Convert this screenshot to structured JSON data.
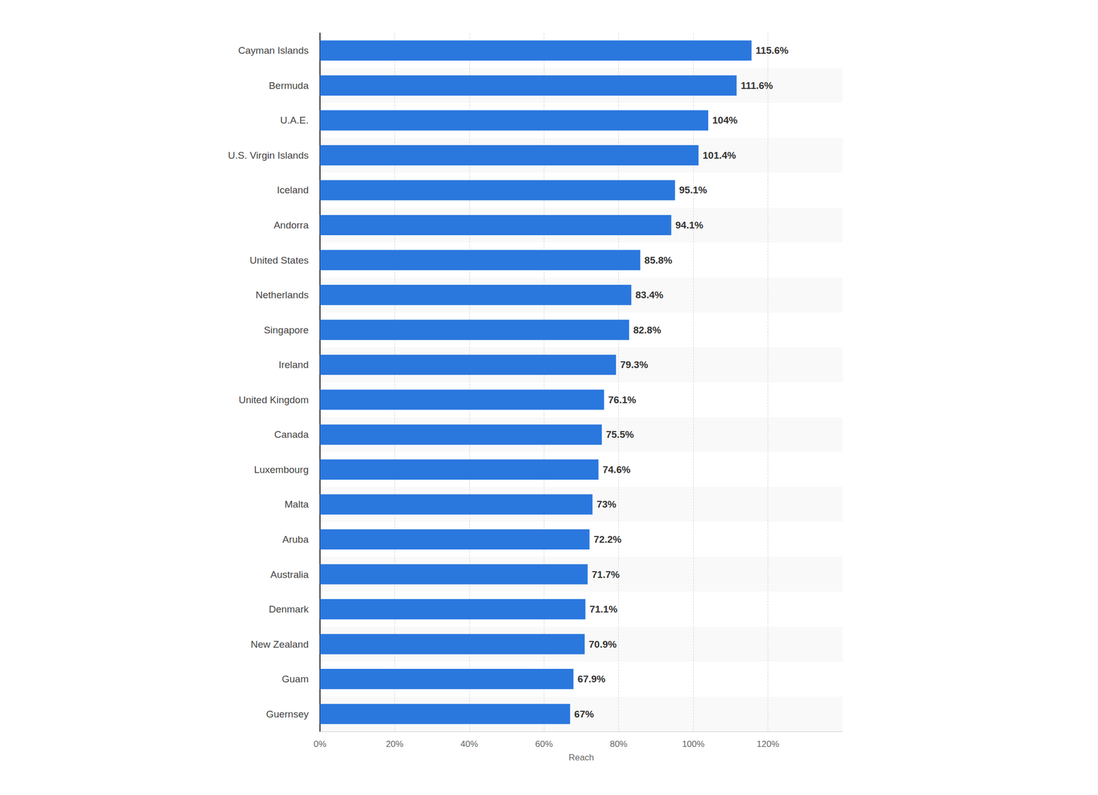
{
  "chart_data": {
    "type": "bar",
    "orientation": "horizontal",
    "categories": [
      "Cayman Islands",
      "Bermuda",
      "U.A.E.",
      "U.S. Virgin Islands",
      "Iceland",
      "Andorra",
      "United States",
      "Netherlands",
      "Singapore",
      "Ireland",
      "United Kingdom",
      "Canada",
      "Luxembourg",
      "Malta",
      "Aruba",
      "Australia",
      "Denmark",
      "New Zealand",
      "Guam",
      "Guernsey"
    ],
    "values": [
      115.6,
      111.6,
      104,
      101.4,
      95.1,
      94.1,
      85.8,
      83.4,
      82.8,
      79.3,
      76.1,
      75.5,
      74.6,
      73,
      72.2,
      71.7,
      71.1,
      70.9,
      67.9,
      67
    ],
    "value_labels": [
      "115.6%",
      "111.6%",
      "104%",
      "101.4%",
      "95.1%",
      "94.1%",
      "85.8%",
      "83.4%",
      "82.8%",
      "79.3%",
      "76.1%",
      "75.5%",
      "74.6%",
      "73%",
      "72.2%",
      "71.7%",
      "71.1%",
      "70.9%",
      "67.9%",
      "67%"
    ],
    "color": "#2a77de",
    "xlabel": "Reach",
    "xlim": [
      0,
      140
    ],
    "xticks": [
      {
        "value": 0,
        "label": "0%"
      },
      {
        "value": 20,
        "label": "20%"
      },
      {
        "value": 40,
        "label": "40%"
      },
      {
        "value": 60,
        "label": "60%"
      },
      {
        "value": 80,
        "label": "80%"
      },
      {
        "value": 100,
        "label": "100%"
      },
      {
        "value": 120,
        "label": "120%"
      }
    ],
    "grid": true,
    "data_labels": true
  }
}
